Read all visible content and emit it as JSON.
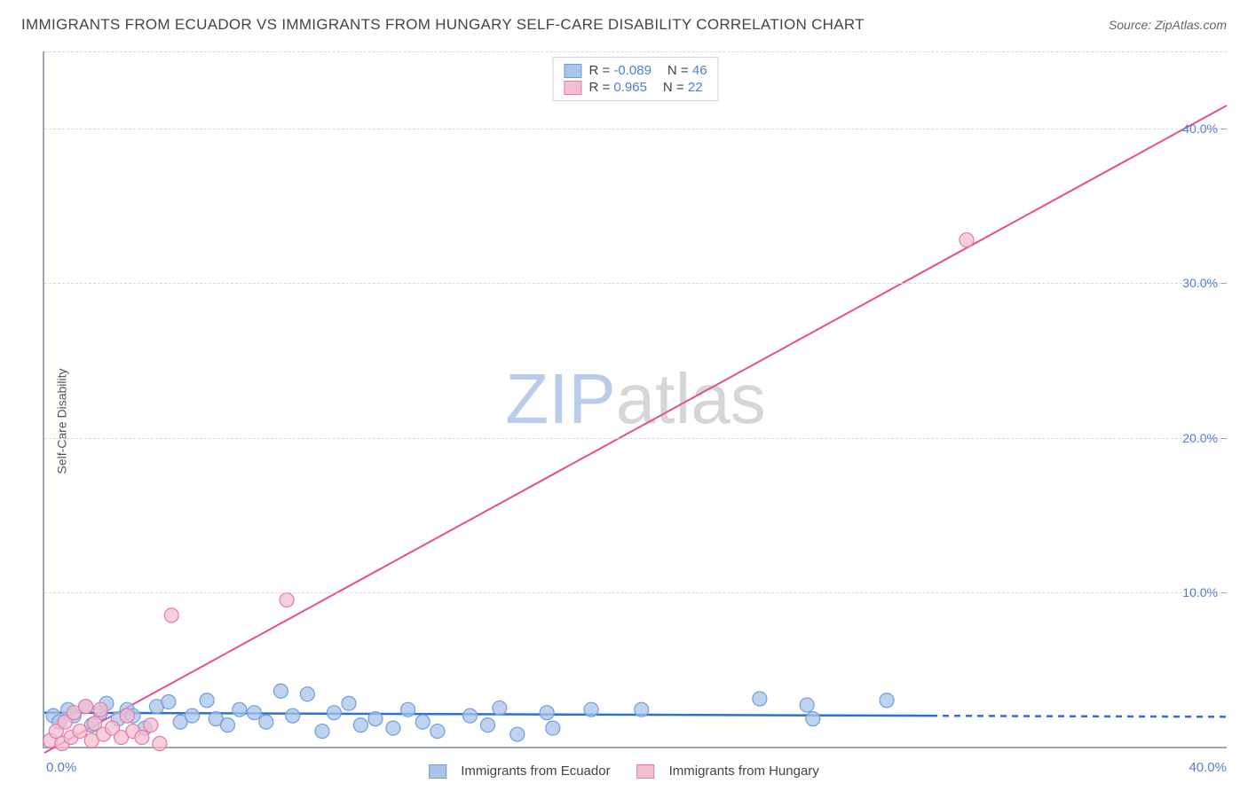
{
  "title": "IMMIGRANTS FROM ECUADOR VS IMMIGRANTS FROM HUNGARY SELF-CARE DISABILITY CORRELATION CHART",
  "source": "Source: ZipAtlas.com",
  "ylabel": "Self-Care Disability",
  "watermark": {
    "part_a": "ZIP",
    "part_b": "atlas",
    "color_a": "#b8cdec",
    "color_b": "#d6d6d6",
    "fontsize": 80
  },
  "axes": {
    "xlim": [
      0,
      40
    ],
    "ylim": [
      0,
      45
    ],
    "x_ticks": [
      0,
      40
    ],
    "x_tick_labels": [
      "0.0%",
      "40.0%"
    ],
    "y_ticks": [
      10,
      20,
      30,
      40
    ],
    "y_tick_labels": [
      "10.0%",
      "20.0%",
      "30.0%",
      "40.0%"
    ],
    "axis_color": "#9aa6b2",
    "grid_color": "#d7dbe0",
    "tick_label_color": "#4f7ecc",
    "tick_label_fontsize": 15
  },
  "legend_stats": {
    "R_label": "R =",
    "N_label": "N =",
    "value_color": "#4f7ecc",
    "rows": [
      {
        "series": 0,
        "R": "-0.089",
        "N": "46"
      },
      {
        "series": 1,
        "R": "0.965",
        "N": "22"
      }
    ]
  },
  "series": [
    {
      "name": "Immigrants from Ecuador",
      "color_fill": "#aac4ea",
      "color_stroke": "#6f9fe0",
      "line_color": "#2f6fd1",
      "line_width": 2.5,
      "marker_radius": 8,
      "marker_opacity": 0.75,
      "fit": {
        "x0": 0,
        "y0": 2.2,
        "x1": 30,
        "y1": 2.0,
        "dash_from_x": 30,
        "dash_to_x": 40
      },
      "points": [
        [
          0.3,
          2.0
        ],
        [
          0.5,
          1.6
        ],
        [
          0.8,
          2.4
        ],
        [
          1.0,
          2.0
        ],
        [
          1.4,
          2.6
        ],
        [
          1.6,
          1.4
        ],
        [
          1.9,
          2.2
        ],
        [
          2.1,
          2.8
        ],
        [
          2.5,
          1.8
        ],
        [
          2.8,
          2.4
        ],
        [
          3.0,
          2.0
        ],
        [
          3.4,
          1.2
        ],
        [
          3.8,
          2.6
        ],
        [
          4.2,
          2.9
        ],
        [
          4.6,
          1.6
        ],
        [
          5.0,
          2.0
        ],
        [
          5.5,
          3.0
        ],
        [
          5.8,
          1.8
        ],
        [
          6.2,
          1.4
        ],
        [
          6.6,
          2.4
        ],
        [
          7.1,
          2.2
        ],
        [
          7.5,
          1.6
        ],
        [
          8.0,
          3.6
        ],
        [
          8.4,
          2.0
        ],
        [
          8.9,
          3.4
        ],
        [
          9.4,
          1.0
        ],
        [
          9.8,
          2.2
        ],
        [
          10.3,
          2.8
        ],
        [
          10.7,
          1.4
        ],
        [
          11.2,
          1.8
        ],
        [
          11.8,
          1.2
        ],
        [
          12.3,
          2.4
        ],
        [
          12.8,
          1.6
        ],
        [
          13.3,
          1.0
        ],
        [
          14.4,
          2.0
        ],
        [
          15.0,
          1.4
        ],
        [
          15.4,
          2.5
        ],
        [
          16.0,
          0.8
        ],
        [
          17.0,
          2.2
        ],
        [
          17.2,
          1.2
        ],
        [
          18.5,
          2.4
        ],
        [
          20.2,
          2.4
        ],
        [
          24.2,
          3.1
        ],
        [
          25.8,
          2.7
        ],
        [
          26.0,
          1.8
        ],
        [
          28.5,
          3.0
        ]
      ]
    },
    {
      "name": "Immigrants from Hungary",
      "color_fill": "#f3bed0",
      "color_stroke": "#e77aa4",
      "line_color": "#e94f86",
      "line_width": 2,
      "marker_radius": 8,
      "marker_opacity": 0.75,
      "fit": {
        "x0": 0,
        "y0": -0.4,
        "x1": 40,
        "y1": 41.5,
        "dash_from_x": 40,
        "dash_to_x": 40
      },
      "points": [
        [
          0.2,
          0.4
        ],
        [
          0.4,
          1.0
        ],
        [
          0.6,
          0.2
        ],
        [
          0.7,
          1.6
        ],
        [
          0.9,
          0.6
        ],
        [
          1.0,
          2.2
        ],
        [
          1.2,
          1.0
        ],
        [
          1.4,
          2.6
        ],
        [
          1.6,
          0.4
        ],
        [
          1.7,
          1.5
        ],
        [
          1.9,
          2.4
        ],
        [
          2.0,
          0.8
        ],
        [
          2.3,
          1.2
        ],
        [
          2.6,
          0.6
        ],
        [
          2.8,
          2.0
        ],
        [
          3.0,
          1.0
        ],
        [
          3.3,
          0.6
        ],
        [
          3.9,
          0.2
        ],
        [
          4.3,
          8.5
        ],
        [
          3.6,
          1.4
        ],
        [
          8.2,
          9.5
        ],
        [
          31.2,
          32.8
        ]
      ]
    }
  ],
  "bottom_legend": {
    "items": [
      {
        "label": "Immigrants from Ecuador",
        "fill": "#aac4ea",
        "stroke": "#6f9fe0"
      },
      {
        "label": "Immigrants from Hungary",
        "fill": "#f3bed0",
        "stroke": "#e77aa4"
      }
    ]
  },
  "background_color": "#ffffff"
}
